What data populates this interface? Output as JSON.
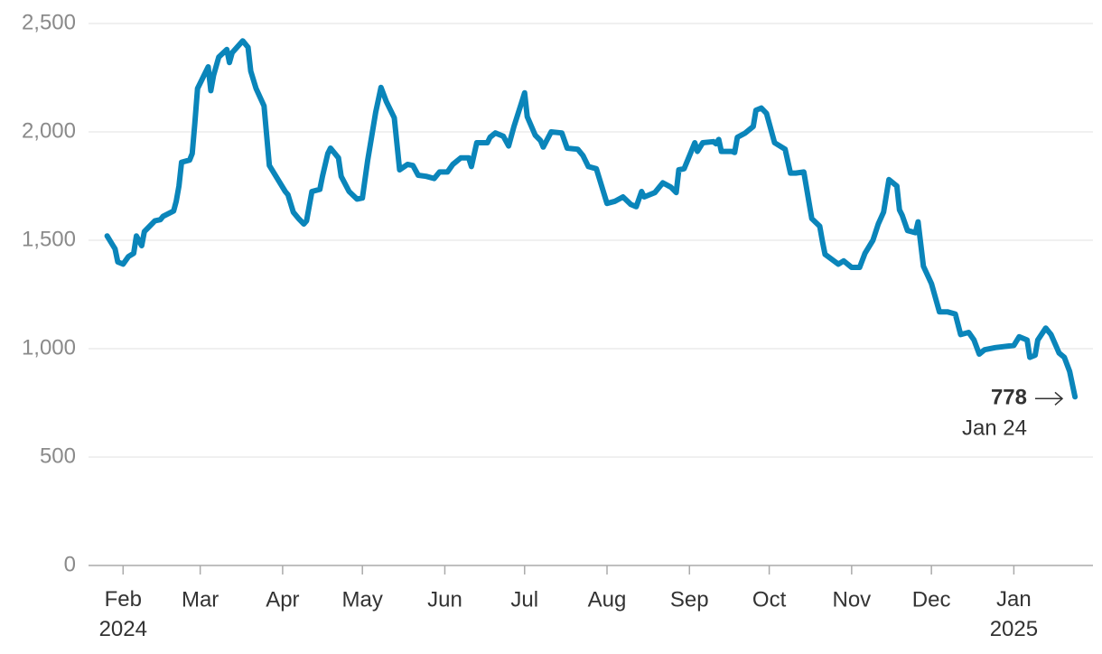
{
  "chart_data": {
    "type": "line",
    "x": [
      "2024-01-26",
      "2024-01-29",
      "2024-01-30",
      "2024-02-01",
      "2024-02-03",
      "2024-02-05",
      "2024-02-06",
      "2024-02-08",
      "2024-02-09",
      "2024-02-13",
      "2024-02-15",
      "2024-02-16",
      "2024-02-20",
      "2024-02-21",
      "2024-02-22",
      "2024-02-23",
      "2024-02-26",
      "2024-02-27",
      "2024-02-28",
      "2024-02-29",
      "2024-03-04",
      "2024-03-05",
      "2024-03-06",
      "2024-03-08",
      "2024-03-11",
      "2024-03-12",
      "2024-03-13",
      "2024-03-17",
      "2024-03-19",
      "2024-03-20",
      "2024-03-22",
      "2024-03-25",
      "2024-03-27",
      "2024-04-02",
      "2024-04-03",
      "2024-04-05",
      "2024-04-07",
      "2024-04-09",
      "2024-04-10",
      "2024-04-12",
      "2024-04-15",
      "2024-04-16",
      "2024-04-18",
      "2024-04-19",
      "2024-04-22",
      "2024-04-23",
      "2024-04-26",
      "2024-04-29",
      "2024-05-01",
      "2024-05-03",
      "2024-05-06",
      "2024-05-08",
      "2024-05-10",
      "2024-05-13",
      "2024-05-15",
      "2024-05-18",
      "2024-05-20",
      "2024-05-22",
      "2024-05-25",
      "2024-05-28",
      "2024-05-30",
      "2024-06-02",
      "2024-06-04",
      "2024-06-07",
      "2024-06-10",
      "2024-06-11",
      "2024-06-13",
      "2024-06-17",
      "2024-06-18",
      "2024-06-20",
      "2024-06-23",
      "2024-06-25",
      "2024-06-27",
      "2024-06-30",
      "2024-07-01",
      "2024-07-02",
      "2024-07-05",
      "2024-07-07",
      "2024-07-08",
      "2024-07-11",
      "2024-07-15",
      "2024-07-17",
      "2024-07-21",
      "2024-07-23",
      "2024-07-25",
      "2024-07-28",
      "2024-08-01",
      "2024-08-04",
      "2024-08-07",
      "2024-08-10",
      "2024-08-12",
      "2024-08-14",
      "2024-08-15",
      "2024-08-19",
      "2024-08-22",
      "2024-08-25",
      "2024-08-27",
      "2024-08-28",
      "2024-08-30",
      "2024-09-03",
      "2024-09-04",
      "2024-09-06",
      "2024-09-10",
      "2024-09-11",
      "2024-09-12",
      "2024-09-13",
      "2024-09-17",
      "2024-09-18",
      "2024-09-19",
      "2024-09-22",
      "2024-09-25",
      "2024-09-26",
      "2024-09-28",
      "2024-09-30",
      "2024-10-03",
      "2024-10-07",
      "2024-10-09",
      "2024-10-11",
      "2024-10-14",
      "2024-10-17",
      "2024-10-20",
      "2024-10-21",
      "2024-10-22",
      "2024-10-27",
      "2024-10-29",
      "2024-11-01",
      "2024-11-04",
      "2024-11-06",
      "2024-11-09",
      "2024-11-11",
      "2024-11-13",
      "2024-11-15",
      "2024-11-18",
      "2024-11-19",
      "2024-11-20",
      "2024-11-22",
      "2024-11-25",
      "2024-11-26",
      "2024-11-28",
      "2024-12-01",
      "2024-12-04",
      "2024-12-07",
      "2024-12-10",
      "2024-12-12",
      "2024-12-15",
      "2024-12-17",
      "2024-12-19",
      "2024-12-21",
      "2024-12-25",
      "2025-01-01",
      "2025-01-03",
      "2025-01-06",
      "2025-01-07",
      "2025-01-09",
      "2025-01-10",
      "2025-01-13",
      "2025-01-15",
      "2025-01-18",
      "2025-01-20",
      "2025-01-22",
      "2025-01-24"
    ],
    "values": [
      1520,
      1460,
      1400,
      1390,
      1425,
      1440,
      1520,
      1475,
      1540,
      1590,
      1595,
      1610,
      1635,
      1680,
      1750,
      1860,
      1870,
      1900,
      2040,
      2200,
      2300,
      2190,
      2260,
      2345,
      2380,
      2320,
      2365,
      2420,
      2390,
      2280,
      2200,
      2120,
      1845,
      1725,
      1710,
      1630,
      1600,
      1575,
      1590,
      1725,
      1735,
      1795,
      1900,
      1925,
      1880,
      1795,
      1725,
      1690,
      1695,
      1870,
      2090,
      2205,
      2140,
      2065,
      1825,
      1850,
      1845,
      1800,
      1795,
      1785,
      1815,
      1815,
      1850,
      1880,
      1880,
      1840,
      1950,
      1950,
      1975,
      1995,
      1980,
      1935,
      2025,
      2140,
      2180,
      2070,
      1985,
      1960,
      1930,
      2000,
      1995,
      1925,
      1920,
      1890,
      1840,
      1830,
      1670,
      1680,
      1700,
      1665,
      1655,
      1725,
      1700,
      1720,
      1765,
      1745,
      1720,
      1825,
      1830,
      1950,
      1910,
      1950,
      1955,
      1945,
      1965,
      1910,
      1910,
      1905,
      1975,
      1995,
      2025,
      2100,
      2110,
      2085,
      1950,
      1920,
      1810,
      1810,
      1815,
      1600,
      1565,
      1495,
      1435,
      1390,
      1405,
      1375,
      1375,
      1440,
      1500,
      1575,
      1630,
      1780,
      1750,
      1640,
      1615,
      1545,
      1535,
      1585,
      1380,
      1300,
      1170,
      1170,
      1160,
      1065,
      1075,
      1040,
      975,
      995,
      1005,
      1015,
      1055,
      1040,
      960,
      970,
      1040,
      1095,
      1065,
      980,
      960,
      895,
      778
    ],
    "color": "#0a85ba",
    "xlim": [
      "2024-01-19",
      "2025-01-26"
    ],
    "xticks": [
      {
        "value": "2024-02-01",
        "label": "Feb\n2024"
      },
      {
        "value": "2024-03-01",
        "label": "Mar"
      },
      {
        "value": "2024-04-01",
        "label": "Apr"
      },
      {
        "value": "2024-05-01",
        "label": "May"
      },
      {
        "value": "2024-06-01",
        "label": "Jun"
      },
      {
        "value": "2024-07-01",
        "label": "Jul"
      },
      {
        "value": "2024-08-01",
        "label": "Aug"
      },
      {
        "value": "2024-09-01",
        "label": "Sep"
      },
      {
        "value": "2024-10-01",
        "label": "Oct"
      },
      {
        "value": "2024-11-01",
        "label": "Nov"
      },
      {
        "value": "2024-12-01",
        "label": "Dec"
      },
      {
        "value": "2025-01-01",
        "label": "Jan\n2025"
      }
    ],
    "ylim": [
      0,
      2500
    ],
    "yticks": [
      0,
      500,
      {
        "value": 1000,
        "label": "1,000"
      },
      {
        "value": 1500,
        "label": "1,500"
      },
      {
        "value": 2000,
        "label": "2,000"
      },
      {
        "value": 2500,
        "label": "2,500"
      }
    ],
    "grid": true,
    "annotation": "Jan 24"
  }
}
